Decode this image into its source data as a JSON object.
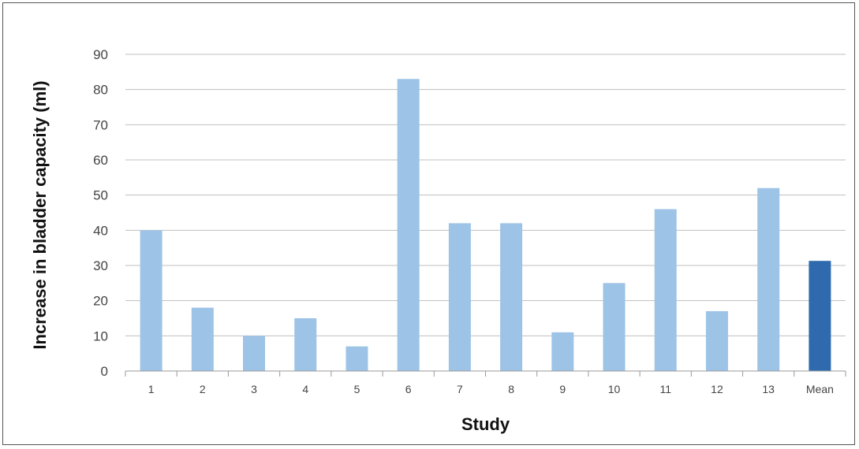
{
  "chart_data": {
    "type": "bar",
    "title": "",
    "xlabel": "Study",
    "ylabel": "Increase in bladder capacity  (ml)",
    "categories": [
      "1",
      "2",
      "3",
      "4",
      "5",
      "6",
      "7",
      "8",
      "9",
      "10",
      "11",
      "12",
      "13",
      "Mean"
    ],
    "values": [
      40,
      18,
      10,
      15,
      7,
      83,
      42,
      42,
      11,
      25,
      46,
      17,
      52,
      31.3
    ],
    "ylim": [
      0,
      90
    ],
    "yticks": [
      0,
      10,
      20,
      30,
      40,
      50,
      60,
      70,
      80,
      90
    ],
    "grid": true,
    "legend": "none",
    "colors": {
      "study_bar": "#9dc3e6",
      "mean_bar": "#2e6aad",
      "gridline": "#bfbfbf"
    }
  }
}
